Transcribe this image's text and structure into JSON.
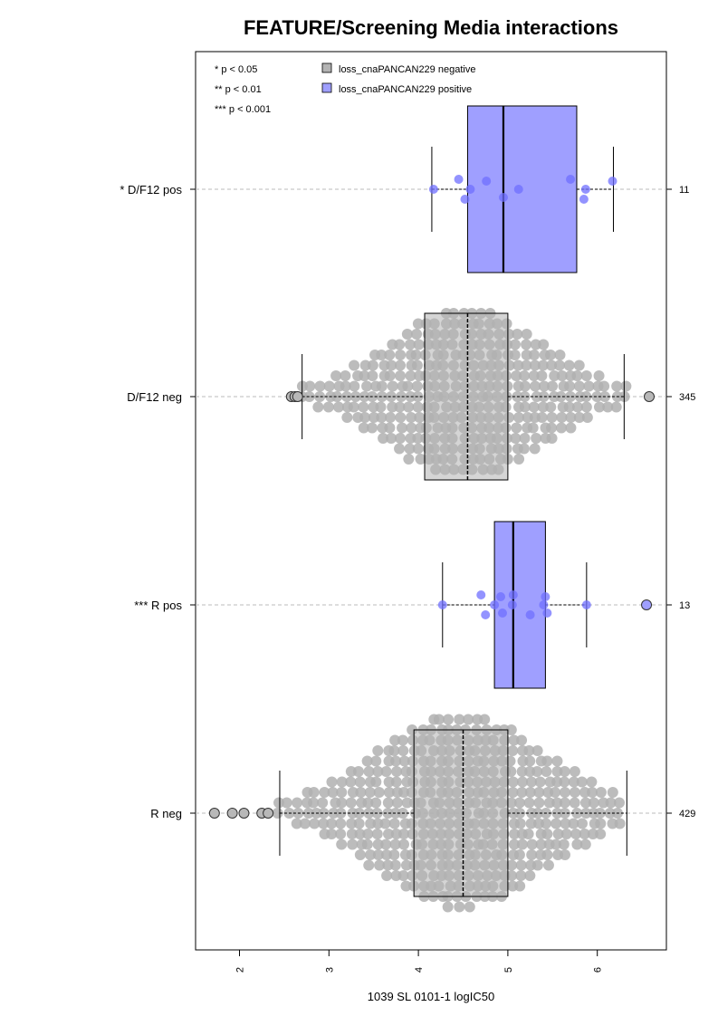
{
  "chart_data": {
    "type": "boxplot",
    "orientation": "horizontal",
    "title": "FEATURE/Screening Media interactions",
    "xlabel": "1039 SL 0101-1 logIC50",
    "ylabel": "",
    "xlim": [
      1.5,
      6.8
    ],
    "xticks": [
      2,
      3,
      4,
      5,
      6
    ],
    "grid": false,
    "significance_legend": [
      "* p < 0.05",
      "** p < 0.01",
      "*** p < 0.001"
    ],
    "legend": [
      {
        "label": "loss_cnaPANCAN229 negative",
        "color": "#b3b3b3"
      },
      {
        "label": "loss_cnaPANCAN229 positive",
        "color": "#9f9fff"
      }
    ],
    "groups": [
      {
        "label": "* D/F12 pos",
        "n": "11",
        "kind": "positive",
        "whisker_low": 4.15,
        "q1": 4.55,
        "median": 4.95,
        "q3": 5.77,
        "whisker_high": 6.18,
        "outliers": [],
        "points": [
          4.17,
          4.45,
          4.52,
          4.58,
          4.76,
          4.95,
          5.12,
          5.7,
          5.85,
          5.87,
          6.17
        ]
      },
      {
        "label": "D/F12 neg",
        "n": "345",
        "kind": "negative",
        "whisker_low": 2.7,
        "q1": 4.07,
        "median": 4.55,
        "q3": 5.0,
        "whisker_high": 6.3,
        "outliers": [
          2.58,
          2.62,
          2.65,
          6.58
        ],
        "spread": {
          "min": 2.7,
          "max": 6.3
        }
      },
      {
        "label": "*** R pos",
        "n": "13",
        "kind": "positive",
        "whisker_low": 4.27,
        "q1": 4.85,
        "median": 5.06,
        "q3": 5.42,
        "whisker_high": 5.88,
        "outliers": [
          6.55
        ],
        "points": [
          4.27,
          4.7,
          4.75,
          4.85,
          4.92,
          4.94,
          5.05,
          5.06,
          5.25,
          5.4,
          5.42,
          5.44,
          5.88
        ]
      },
      {
        "label": "R neg",
        "n": "429",
        "kind": "negative",
        "whisker_low": 2.45,
        "q1": 3.95,
        "median": 4.5,
        "q3": 5.0,
        "whisker_high": 6.33,
        "outliers": [
          1.72,
          1.92,
          2.05,
          2.25,
          2.32
        ],
        "spread": {
          "min": 2.45,
          "max": 6.33
        }
      }
    ]
  }
}
